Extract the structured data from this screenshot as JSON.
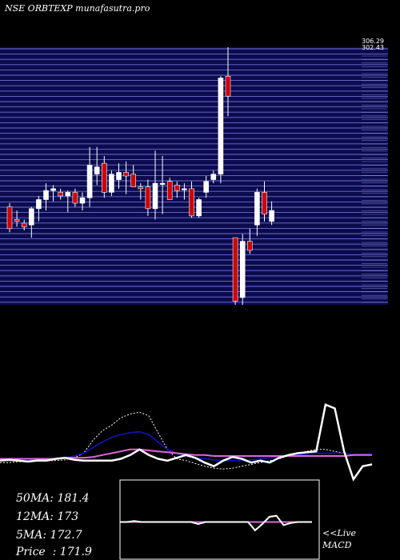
{
  "header": {
    "title": "NSE ORBTEXP munafasutra.pro"
  },
  "colors": {
    "background": "#000000",
    "price_panel_bg": "#0b0b4d",
    "grid_line": "#6f6fd8",
    "bull_candle": "#ffffff",
    "bear_candle": "#cc0000",
    "ma_fast": "#ffffff",
    "ma_mid": "#1515c8",
    "ma_slow": "#ffffff",
    "pink": "#dd66dd",
    "volume_fill": "#000000"
  },
  "chart_data": [
    {
      "type": "candlestick",
      "ylim": [
        168,
        310
      ],
      "y_tick_labels": [
        "306.29",
        "302.43"
      ],
      "candles": [
        {
          "o": 222,
          "h": 224,
          "l": 208,
          "c": 210
        },
        {
          "o": 215,
          "h": 220,
          "l": 211,
          "c": 214
        },
        {
          "o": 213,
          "h": 215,
          "l": 209,
          "c": 211
        },
        {
          "o": 212,
          "h": 222,
          "l": 205,
          "c": 221
        },
        {
          "o": 221,
          "h": 228,
          "l": 214,
          "c": 226
        },
        {
          "o": 226,
          "h": 235,
          "l": 220,
          "c": 231
        },
        {
          "o": 231,
          "h": 234,
          "l": 225,
          "c": 232
        },
        {
          "o": 230,
          "h": 232,
          "l": 226,
          "c": 228
        },
        {
          "o": 228,
          "h": 231,
          "l": 219,
          "c": 230
        },
        {
          "o": 230,
          "h": 232,
          "l": 222,
          "c": 224
        },
        {
          "o": 224,
          "h": 230,
          "l": 220,
          "c": 227
        },
        {
          "o": 227,
          "h": 255,
          "l": 222,
          "c": 245
        },
        {
          "o": 240,
          "h": 255,
          "l": 234,
          "c": 244
        },
        {
          "o": 246,
          "h": 250,
          "l": 227,
          "c": 230
        },
        {
          "o": 230,
          "h": 242,
          "l": 228,
          "c": 240
        },
        {
          "o": 237,
          "h": 246,
          "l": 232,
          "c": 241
        },
        {
          "o": 241,
          "h": 247,
          "l": 229,
          "c": 239
        },
        {
          "o": 240,
          "h": 245,
          "l": 233,
          "c": 233
        },
        {
          "o": 233,
          "h": 235,
          "l": 226,
          "c": 232
        },
        {
          "o": 233,
          "h": 237,
          "l": 217,
          "c": 221
        },
        {
          "o": 221,
          "h": 253,
          "l": 215,
          "c": 235
        },
        {
          "o": 235,
          "h": 250,
          "l": 218,
          "c": 235
        },
        {
          "o": 236,
          "h": 238,
          "l": 226,
          "c": 226
        },
        {
          "o": 234,
          "h": 236,
          "l": 227,
          "c": 231
        },
        {
          "o": 232,
          "h": 235,
          "l": 226,
          "c": 232
        },
        {
          "o": 232,
          "h": 236,
          "l": 216,
          "c": 217
        },
        {
          "o": 217,
          "h": 227,
          "l": 216,
          "c": 226
        },
        {
          "o": 230,
          "h": 239,
          "l": 227,
          "c": 236
        },
        {
          "o": 237,
          "h": 242,
          "l": 235,
          "c": 240
        },
        {
          "o": 240,
          "h": 294,
          "l": 235,
          "c": 293
        },
        {
          "o": 294,
          "h": 310,
          "l": 272,
          "c": 283
        },
        {
          "o": 205,
          "h": 205,
          "l": 168,
          "c": 170
        },
        {
          "o": 172,
          "h": 207,
          "l": 168,
          "c": 203
        },
        {
          "o": 203,
          "h": 210,
          "l": 196,
          "c": 198
        },
        {
          "o": 212,
          "h": 232,
          "l": 206,
          "c": 230
        },
        {
          "o": 230,
          "h": 236,
          "l": 214,
          "c": 218
        },
        {
          "o": 214,
          "h": 225,
          "l": 212,
          "c": 220
        }
      ]
    },
    {
      "type": "line",
      "indicator": "moving-averages-and-volume",
      "series": [
        {
          "values": [
            -2,
            -2,
            -1,
            -1,
            0,
            0,
            0,
            1,
            3,
            8,
            22,
            32,
            38,
            46,
            50,
            52,
            48,
            30,
            12,
            2,
            0,
            -3,
            -6,
            -8,
            -9,
            -8,
            -6,
            -4,
            -2,
            0,
            2,
            5,
            8,
            10,
            12,
            12,
            10,
            8,
            7,
            6,
            7
          ]
        },
        {
          "values": [
            0,
            0,
            0,
            0,
            1,
            1,
            2,
            3,
            5,
            8,
            14,
            20,
            25,
            28,
            30,
            31,
            28,
            20,
            12,
            8,
            5,
            3,
            2,
            1,
            0,
            0,
            0,
            1,
            2,
            3,
            4,
            5,
            6,
            7,
            8,
            8,
            8,
            8,
            7,
            7,
            7
          ]
        },
        {
          "values": [
            2,
            2,
            2,
            2,
            2,
            2,
            2,
            3,
            3,
            3,
            4,
            6,
            8,
            10,
            12,
            12,
            11,
            10,
            9,
            8,
            7,
            6,
            6,
            5,
            5,
            5,
            5,
            5,
            5,
            5,
            5,
            5,
            5,
            5,
            5,
            5,
            5,
            5,
            6,
            6,
            6
          ]
        },
        {
          "values": [
            0,
            1,
            0,
            -1,
            0,
            0,
            2,
            3,
            1,
            0,
            0,
            0,
            0,
            2,
            6,
            12,
            6,
            2,
            0,
            3,
            6,
            3,
            -2,
            -6,
            0,
            4,
            2,
            -2,
            0,
            -2,
            3,
            6,
            8,
            9,
            10,
            60,
            56,
            10,
            -20,
            -6,
            -4
          ]
        }
      ],
      "ylim": [
        -25,
        65
      ]
    },
    {
      "type": "line",
      "indicator": "macd",
      "series": [
        {
          "values": [
            0,
            0,
            0,
            0,
            0,
            0,
            0,
            0,
            0,
            0,
            0,
            0,
            0,
            0,
            0,
            0,
            0,
            0,
            0,
            0,
            0,
            0,
            0,
            0,
            0,
            0,
            0,
            0
          ]
        },
        {
          "values": [
            0,
            0,
            1,
            0,
            0,
            0,
            0,
            0,
            0,
            0,
            0,
            -2,
            0,
            0,
            0,
            0,
            0,
            0,
            0,
            -8,
            -2,
            5,
            6,
            -3,
            -1,
            0,
            0,
            0
          ]
        }
      ],
      "ylim": [
        -25,
        25
      ]
    }
  ],
  "stats": [
    {
      "label": "50MA",
      "value": "181.4"
    },
    {
      "label": "12MA",
      "value": "173"
    },
    {
      "label": "5MA",
      "value": "172.7"
    },
    {
      "label": "Price",
      "value": "171.9",
      "separator": "  : "
    }
  ],
  "macd_label": {
    "line1": "<<Live",
    "line2": "MACD"
  }
}
